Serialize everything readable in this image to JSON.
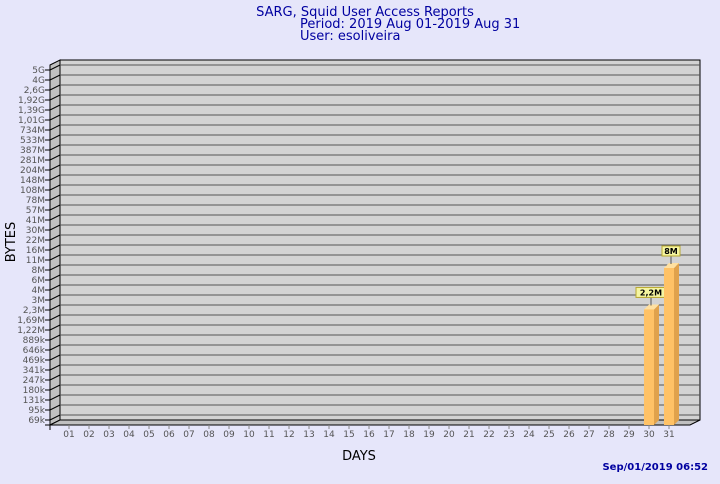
{
  "chart_data": {
    "type": "bar",
    "title": "SARG, Squid User Access Reports",
    "subtitle_period": "Period: 2019 Aug 01-2019 Aug 31",
    "subtitle_user": "User: esoliveira",
    "xlabel": "DAYS",
    "ylabel": "BYTES",
    "y_scale": "log",
    "y_tick_labels": [
      "5G",
      "4G",
      "2,6G",
      "1,92G",
      "1,39G",
      "1,01G",
      "734M",
      "533M",
      "387M",
      "281M",
      "204M",
      "148M",
      "108M",
      "78M",
      "57M",
      "41M",
      "30M",
      "22M",
      "16M",
      "11M",
      "8M",
      "6M",
      "4M",
      "3M",
      "2,3M",
      "1,69M",
      "1,22M",
      "889k",
      "646k",
      "469k",
      "341k",
      "247k",
      "180k",
      "131k",
      "95k",
      "69k"
    ],
    "categories": [
      "01",
      "02",
      "03",
      "04",
      "05",
      "06",
      "07",
      "08",
      "09",
      "10",
      "11",
      "12",
      "13",
      "14",
      "15",
      "16",
      "17",
      "18",
      "19",
      "20",
      "21",
      "22",
      "23",
      "24",
      "25",
      "26",
      "27",
      "28",
      "29",
      "30",
      "31"
    ],
    "bars": [
      {
        "day": "30",
        "value": 2200000,
        "label": "2,2M"
      },
      {
        "day": "31",
        "value": 8000000,
        "label": "8M"
      }
    ],
    "grid": true,
    "timestamp": "Sep/01/2019 06:52",
    "colors": {
      "background": "#e6e6fa",
      "plot": "#d3d3d3",
      "bar": "#ffc266",
      "bar_side": "#e0a24c",
      "title": "#0000a0",
      "label_box": "#f5f5a0"
    }
  }
}
